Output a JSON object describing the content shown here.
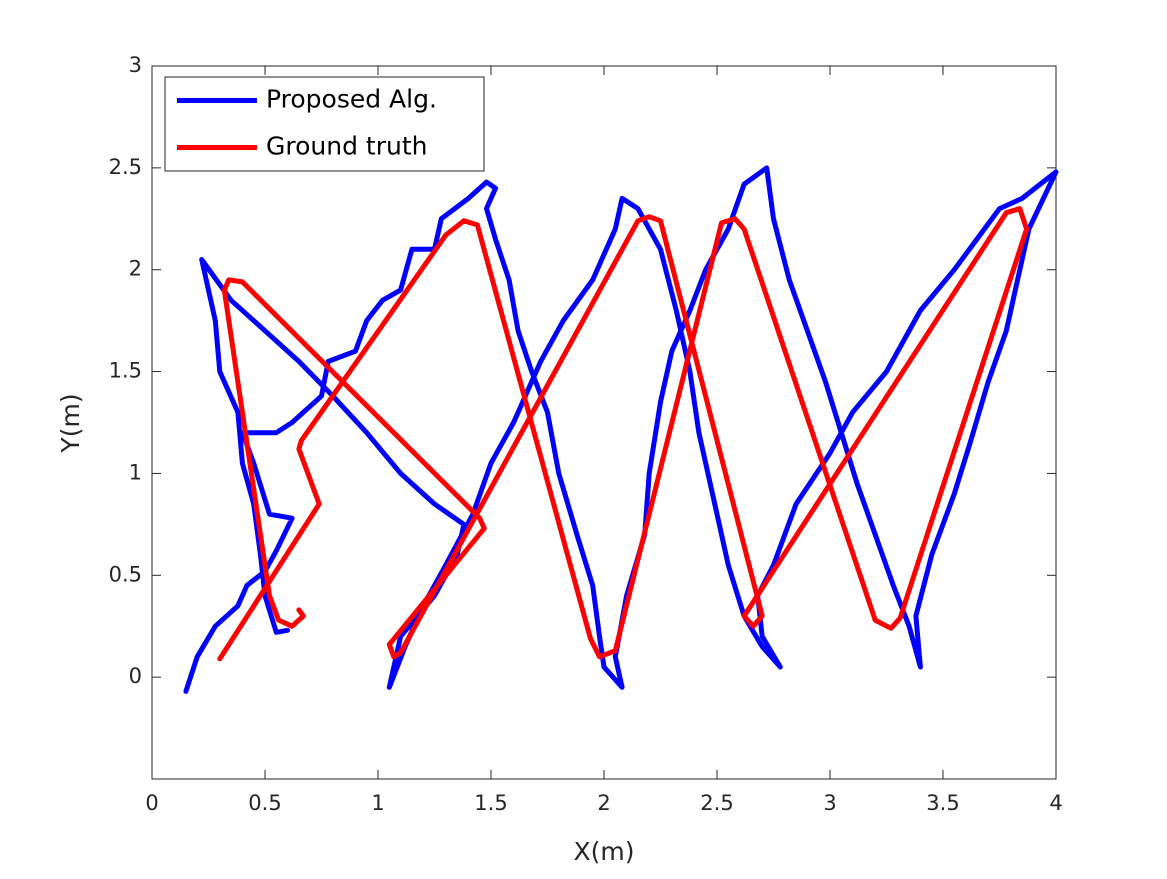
{
  "chart_data": {
    "type": "line",
    "xlabel": "X(m)",
    "ylabel": "Y(m)",
    "xlim": [
      0,
      4
    ],
    "ylim": [
      -0.5,
      3
    ],
    "xticks": [
      0,
      0.5,
      1,
      1.5,
      2,
      2.5,
      3,
      3.5,
      4
    ],
    "yticks": [
      0,
      0.5,
      1,
      1.5,
      2,
      2.5,
      3
    ],
    "legend": "upper left",
    "series": [
      {
        "name": "Proposed Alg.",
        "color": "#0000ff",
        "x": [
          0.15,
          0.2,
          0.28,
          0.38,
          0.42,
          0.5,
          0.55,
          0.62,
          0.52,
          0.45,
          0.4,
          0.55,
          0.62,
          0.75,
          0.78,
          0.9,
          0.95,
          1.02,
          1.1,
          1.15,
          1.25,
          1.28,
          1.4,
          1.48,
          1.52,
          1.48,
          1.52,
          1.58,
          1.62,
          1.68,
          1.75,
          1.8,
          1.88,
          1.95,
          1.98,
          2.0,
          2.08,
          2.05,
          2.1,
          2.18,
          2.2,
          2.25,
          2.3,
          2.38,
          2.45,
          2.55,
          2.62,
          2.72,
          2.75,
          2.82,
          2.9,
          2.98,
          3.05,
          3.12,
          3.2,
          3.28,
          3.35,
          3.4,
          3.38,
          3.45,
          3.55,
          3.62,
          3.7,
          3.78,
          3.82,
          3.88,
          4.0,
          3.85,
          3.75,
          3.55,
          3.4,
          3.25,
          3.1,
          3.0,
          2.85,
          2.75,
          2.68,
          2.7,
          2.78,
          2.7,
          2.62,
          2.55,
          2.48,
          2.42,
          2.38,
          2.32,
          2.25,
          2.15,
          2.08,
          2.05,
          1.95,
          1.82,
          1.72,
          1.6,
          1.5,
          1.42,
          1.3,
          1.2,
          1.12,
          1.05,
          1.1,
          1.25,
          1.35,
          1.38,
          1.25,
          1.1,
          0.95,
          0.8,
          0.65,
          0.5,
          0.35,
          0.22,
          0.25,
          0.28,
          0.3,
          0.38,
          0.4,
          0.45,
          0.48,
          0.5,
          0.55,
          0.6
        ],
        "values": [
          -0.07,
          0.1,
          0.25,
          0.35,
          0.45,
          0.52,
          0.62,
          0.78,
          0.8,
          1.05,
          1.2,
          1.2,
          1.25,
          1.38,
          1.55,
          1.6,
          1.75,
          1.85,
          1.9,
          2.1,
          2.1,
          2.25,
          2.35,
          2.43,
          2.4,
          2.3,
          2.15,
          1.95,
          1.7,
          1.5,
          1.3,
          1.0,
          0.7,
          0.45,
          0.2,
          0.05,
          -0.05,
          0.1,
          0.4,
          0.7,
          1.0,
          1.35,
          1.6,
          1.8,
          2.0,
          2.2,
          2.42,
          2.5,
          2.25,
          1.95,
          1.7,
          1.45,
          1.2,
          0.95,
          0.7,
          0.45,
          0.25,
          0.05,
          0.3,
          0.6,
          0.9,
          1.15,
          1.45,
          1.7,
          1.9,
          2.2,
          2.48,
          2.35,
          2.3,
          2.0,
          1.8,
          1.5,
          1.3,
          1.1,
          0.85,
          0.55,
          0.4,
          0.2,
          0.05,
          0.15,
          0.3,
          0.55,
          0.9,
          1.2,
          1.5,
          1.8,
          2.1,
          2.3,
          2.35,
          2.2,
          1.95,
          1.75,
          1.55,
          1.25,
          1.05,
          0.8,
          0.55,
          0.35,
          0.15,
          -0.05,
          0.2,
          0.4,
          0.6,
          0.75,
          0.85,
          1.0,
          1.2,
          1.38,
          1.55,
          1.7,
          1.85,
          2.05,
          1.9,
          1.75,
          1.5,
          1.3,
          1.05,
          0.85,
          0.6,
          0.4,
          0.22,
          0.23
        ]
      },
      {
        "name": "Ground truth",
        "color": "#ff0000",
        "x": [
          0.3,
          0.74,
          0.65,
          0.66,
          1.3,
          1.38,
          1.44,
          1.94,
          1.98,
          2.05,
          2.52,
          2.58,
          2.62,
          3.2,
          3.27,
          3.31,
          3.87,
          3.84,
          3.78,
          2.62,
          2.66,
          2.7,
          2.25,
          2.2,
          2.15,
          1.1,
          1.07,
          1.05,
          1.47,
          1.45,
          0.4,
          0.34,
          0.32,
          0.52,
          0.56,
          0.62,
          0.67,
          0.65
        ],
        "values": [
          0.09,
          0.85,
          1.12,
          1.16,
          2.17,
          2.24,
          2.22,
          0.19,
          0.1,
          0.13,
          2.23,
          2.25,
          2.2,
          0.28,
          0.24,
          0.29,
          2.2,
          2.3,
          2.28,
          0.3,
          0.25,
          0.3,
          2.24,
          2.26,
          2.24,
          0.12,
          0.1,
          0.16,
          0.73,
          0.78,
          1.94,
          1.95,
          1.9,
          0.4,
          0.28,
          0.25,
          0.3,
          0.33
        ]
      }
    ]
  }
}
